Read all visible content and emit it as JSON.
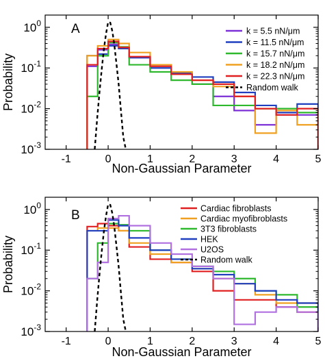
{
  "chart_data": [
    {
      "type": "line",
      "panel_label": "A",
      "xlabel": "Non-Gaussian Parameter",
      "ylabel": "Probability",
      "xlim": [
        -1.5,
        5
      ],
      "ylim": [
        0.001,
        2
      ],
      "yscale": "log",
      "grid": false,
      "legend_position": "top-right",
      "x_ticks": [
        "-1",
        "0",
        "1",
        "2",
        "3",
        "4",
        "5"
      ],
      "y_ticks": [
        "10^-3",
        "10^-2",
        "10^-1",
        "10^0"
      ],
      "bin_edges": [
        -0.5,
        -0.25,
        0,
        0.25,
        0.5,
        1,
        1.5,
        2,
        2.5,
        3,
        3.5,
        4,
        4.5,
        5
      ],
      "series": [
        {
          "name": "k = 5.5 nN/μm",
          "color": "#7b2fd6",
          "values": [
            0.11,
            0.28,
            0.38,
            0.3,
            0.18,
            0.12,
            0.07,
            0.04,
            0.02,
            0.009,
            0.004,
            0.007,
            0.007
          ]
        },
        {
          "name": "k = 11.5 nN/μm",
          "color": "#1f3fbf",
          "values": [
            0.2,
            0.22,
            0.35,
            0.3,
            0.18,
            0.1,
            0.075,
            0.06,
            0.045,
            0.025,
            0.012,
            0.008,
            0.013
          ]
        },
        {
          "name": "k = 15.7 nN/μm",
          "color": "#2db82d",
          "values": [
            0.02,
            0.2,
            0.42,
            0.33,
            0.12,
            0.08,
            0.05,
            0.04,
            0.012,
            0.012,
            0.01,
            0.01,
            0.008
          ]
        },
        {
          "name": "k = 18.2 nN/μm",
          "color": "#f0a020",
          "values": [
            0.2,
            0.35,
            0.5,
            0.4,
            0.24,
            0.12,
            0.08,
            0.05,
            0.035,
            0.02,
            0.0025,
            0.009,
            0.004
          ]
        },
        {
          "name": "k = 22.3 nN/μm",
          "color": "#e02020",
          "values": [
            0.12,
            0.3,
            0.45,
            0.32,
            0.19,
            0.11,
            0.07,
            0.05,
            0.04,
            0.02,
            0.01,
            0.007,
            0.01
          ]
        }
      ],
      "random_walk": {
        "name": "Random walk",
        "color": "#000000",
        "dash": "dashed",
        "x": [
          -0.32,
          -0.26,
          -0.2,
          -0.15,
          -0.1,
          -0.05,
          0,
          0.05,
          0.1,
          0.15,
          0.2,
          0.25,
          0.3,
          0.36,
          0.42
        ],
        "y": [
          0.001,
          0.006,
          0.03,
          0.1,
          0.3,
          0.7,
          1.35,
          1.3,
          0.8,
          0.35,
          0.12,
          0.04,
          0.01,
          0.002,
          0.001
        ]
      }
    },
    {
      "type": "line",
      "panel_label": "B",
      "xlabel": "Non-Gaussian Parameter",
      "ylabel": "Probability",
      "xlim": [
        -1.5,
        5
      ],
      "ylim": [
        0.001,
        2
      ],
      "yscale": "log",
      "grid": false,
      "legend_position": "top-right",
      "x_ticks": [
        "-1",
        "0",
        "1",
        "2",
        "3",
        "4",
        "5"
      ],
      "y_ticks": [
        "10^-3",
        "10^-2",
        "10^-1",
        "10^0"
      ],
      "bin_edges": [
        -0.5,
        -0.25,
        0,
        0.25,
        0.5,
        1,
        1.5,
        2,
        2.5,
        3,
        3.5,
        4,
        4.5,
        5
      ],
      "series": [
        {
          "name": "Cardiac fibroblasts",
          "color": "#e02020",
          "values": [
            0.38,
            0.45,
            0.4,
            0.3,
            0.12,
            0.06,
            0.05,
            0.03,
            0.01,
            0.006,
            0.006,
            0.004,
            0.003
          ]
        },
        {
          "name": "Cardiac myofibroblasts",
          "color": "#f0a020",
          "values": [
            0.3,
            0.35,
            0.35,
            0.3,
            0.15,
            0.08,
            0.05,
            0.035,
            0.02,
            0.015,
            0.008,
            0.005,
            0.005
          ]
        },
        {
          "name": "3T3 fibroblasts",
          "color": "#2db82d",
          "values": [
            0.02,
            0.15,
            0.45,
            0.42,
            0.3,
            0.1,
            0.06,
            0.04,
            0.03,
            0.02,
            0.01,
            0.008,
            0.004
          ]
        },
        {
          "name": "HEK",
          "color": "#1f3fbf",
          "values": [
            0.3,
            0.3,
            0.55,
            0.4,
            0.2,
            0.1,
            0.06,
            0.035,
            0.025,
            0.015,
            0.01,
            0.006,
            0.005
          ]
        },
        {
          "name": "U2OS",
          "color": "#b070e0",
          "values": [
            0.02,
            0.05,
            0.6,
            0.7,
            0.4,
            0.15,
            0.08,
            0.04,
            0.02,
            0.0015,
            0.003,
            0.004,
            0.003
          ]
        }
      ],
      "random_walk": {
        "name": "Random walk",
        "color": "#000000",
        "dash": "dashed",
        "x": [
          -0.32,
          -0.26,
          -0.2,
          -0.15,
          -0.1,
          -0.05,
          0,
          0.05,
          0.1,
          0.15,
          0.2,
          0.25,
          0.3,
          0.36,
          0.42
        ],
        "y": [
          0.001,
          0.006,
          0.03,
          0.1,
          0.3,
          0.7,
          1.35,
          1.3,
          0.8,
          0.35,
          0.12,
          0.04,
          0.01,
          0.002,
          0.001
        ]
      }
    }
  ]
}
